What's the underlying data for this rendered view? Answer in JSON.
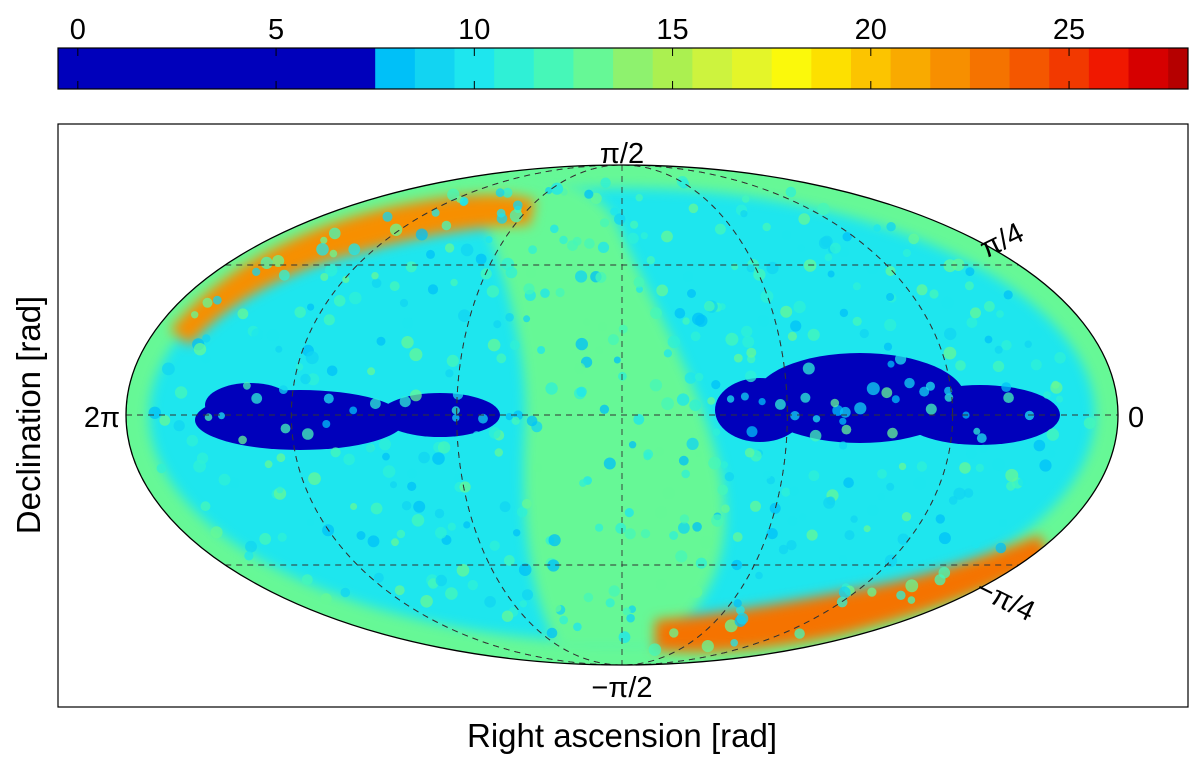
{
  "chart_data": {
    "type": "heatmap",
    "projection": "mollweide",
    "xlabel": "Right ascension [rad]",
    "ylabel": "Declination [rad]",
    "colorbar": {
      "range": [
        -0.5,
        28
      ],
      "ticks": [
        0,
        5,
        10,
        15,
        20,
        25
      ],
      "tick_labels": [
        "0",
        "5",
        "10",
        "15",
        "20",
        "25"
      ],
      "segments": [
        {
          "from": -0.5,
          "to": 7.5,
          "color": "#0000bb"
        },
        {
          "from": 7.5,
          "to": 8.5,
          "color": "#00c0f8"
        },
        {
          "from": 8.5,
          "to": 9.5,
          "color": "#12d4f2"
        },
        {
          "from": 9.5,
          "to": 10.5,
          "color": "#1ee6ee"
        },
        {
          "from": 10.5,
          "to": 11.5,
          "color": "#2ff0d6"
        },
        {
          "from": 11.5,
          "to": 12.5,
          "color": "#46f7b8"
        },
        {
          "from": 12.5,
          "to": 13.5,
          "color": "#66f896"
        },
        {
          "from": 13.5,
          "to": 14.5,
          "color": "#8ef26e"
        },
        {
          "from": 14.5,
          "to": 15.5,
          "color": "#abf050"
        },
        {
          "from": 15.5,
          "to": 16.5,
          "color": "#cdf33e"
        },
        {
          "from": 16.5,
          "to": 17.5,
          "color": "#e4f529"
        },
        {
          "from": 17.5,
          "to": 18.5,
          "color": "#fbf90b"
        },
        {
          "from": 18.5,
          "to": 19.5,
          "color": "#fde000"
        },
        {
          "from": 19.5,
          "to": 20.5,
          "color": "#fcc400"
        },
        {
          "from": 20.5,
          "to": 21.5,
          "color": "#f9aa00"
        },
        {
          "from": 21.5,
          "to": 22.5,
          "color": "#f78f00"
        },
        {
          "from": 22.5,
          "to": 23.5,
          "color": "#f57300"
        },
        {
          "from": 23.5,
          "to": 24.5,
          "color": "#f45700"
        },
        {
          "from": 24.5,
          "to": 25.5,
          "color": "#f23900"
        },
        {
          "from": 25.5,
          "to": 26.5,
          "color": "#f01800"
        },
        {
          "from": 26.5,
          "to": 27.5,
          "color": "#d60000"
        },
        {
          "from": 27.5,
          "to": 28,
          "color": "#b50000"
        }
      ]
    },
    "meridian_labels": {
      "top": "π/2",
      "bottom": "−π/2",
      "left": "2π",
      "right": "0"
    },
    "parallel_labels": {
      "upper": "π/4",
      "lower": "−π/4"
    },
    "regions": [
      {
        "name": "background",
        "value": 10
      },
      {
        "name": "galactic-band",
        "value": 13
      },
      {
        "name": "outer-rim",
        "value": 13
      },
      {
        "name": "hotspot-north",
        "value": 22
      },
      {
        "name": "hotspot-south",
        "value": 23
      },
      {
        "name": "void-west",
        "value": 0
      },
      {
        "name": "void-east",
        "value": 0
      }
    ],
    "grid": true
  }
}
